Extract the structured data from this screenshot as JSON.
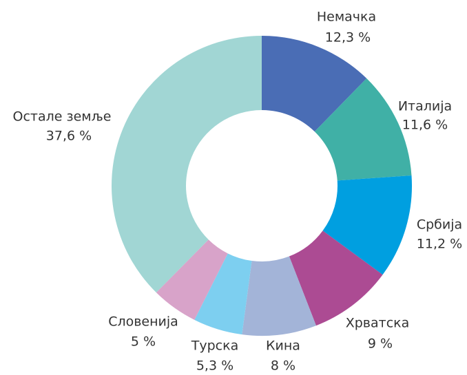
{
  "chart_data": {
    "type": "donut",
    "categories": [
      "Немачка",
      "Италија",
      "Србија",
      "Хрватска",
      "Кина",
      "Турска",
      "Словенија",
      "Остале земље"
    ],
    "values": [
      12.3,
      11.6,
      11.2,
      9,
      8,
      5.3,
      5,
      37.6
    ],
    "value_labels": [
      "12,3 %",
      "11,6 %",
      "11,2 %",
      "9 %",
      "8 %",
      "5,3 %",
      "5 %",
      "37,6 %"
    ],
    "colors": [
      "#4a6db5",
      "#40b0a6",
      "#009fe0",
      "#ac4b93",
      "#a3b4d8",
      "#7dcff0",
      "#d8a3c9",
      "#a1d6d4"
    ]
  }
}
